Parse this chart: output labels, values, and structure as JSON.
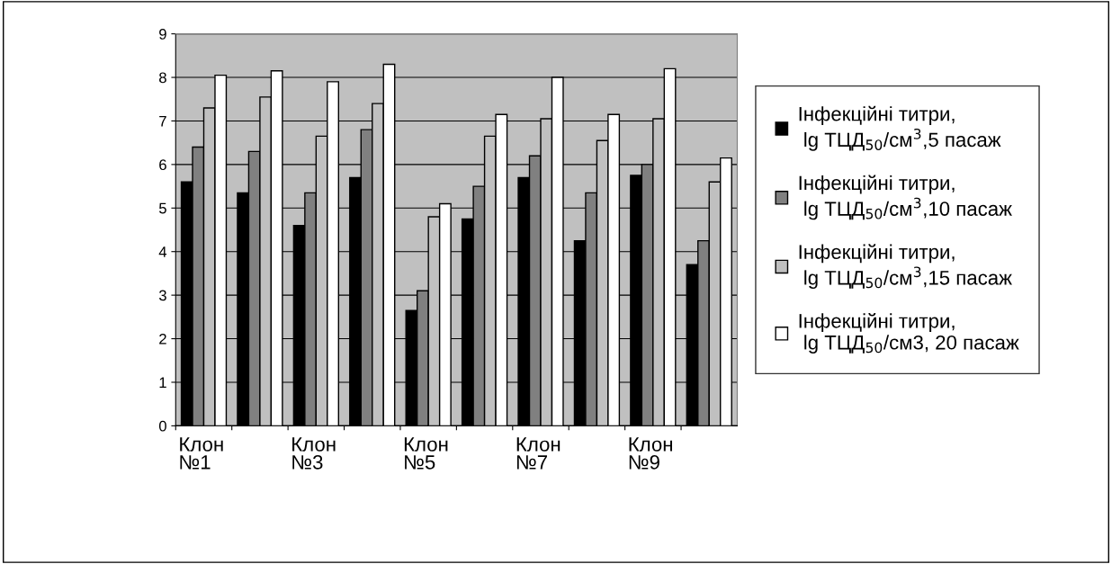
{
  "chart_data": {
    "type": "bar",
    "categories": [
      "Клон\n№1",
      null,
      "Клон\n№3",
      null,
      "Клон\n№5",
      null,
      "Клон\n№7",
      null,
      "Клон\n№9",
      null
    ],
    "series": [
      {
        "name": "Інфекційні титри,\n lg ТЦД$_{50}$/см$^{3}$,5 пасаж",
        "color": "#000000",
        "values": [
          5.6,
          5.35,
          4.6,
          5.7,
          2.65,
          4.75,
          5.7,
          4.25,
          5.75,
          3.7
        ]
      },
      {
        "name": "Інфекційні титри,\n lg ТЦД$_{50}$/см$^{3}$,10 пасаж",
        "color": "#808080",
        "values": [
          6.4,
          6.3,
          5.35,
          6.8,
          3.1,
          5.5,
          6.2,
          5.35,
          6.0,
          4.25
        ]
      },
      {
        "name": "Інфекційні титри,\n lg ТЦД$_{50}$/см$^{3}$,15 пасаж",
        "color": "#c0c0c0",
        "values": [
          7.3,
          7.55,
          6.65,
          7.4,
          4.8,
          6.65,
          7.05,
          6.55,
          7.05,
          5.6
        ]
      },
      {
        "name": "Інфекційні титри,\n lg ТЦД$_{50}$/см3, 20 пасаж",
        "color": "#ffffff",
        "values": [
          8.05,
          8.15,
          7.9,
          8.3,
          5.1,
          7.15,
          8.0,
          7.15,
          8.2,
          6.15
        ]
      }
    ],
    "ylim": [
      0,
      9
    ],
    "yticks": [
      0,
      1,
      2,
      3,
      4,
      5,
      6,
      7,
      8,
      9
    ],
    "grid": "y",
    "legend": "right"
  }
}
